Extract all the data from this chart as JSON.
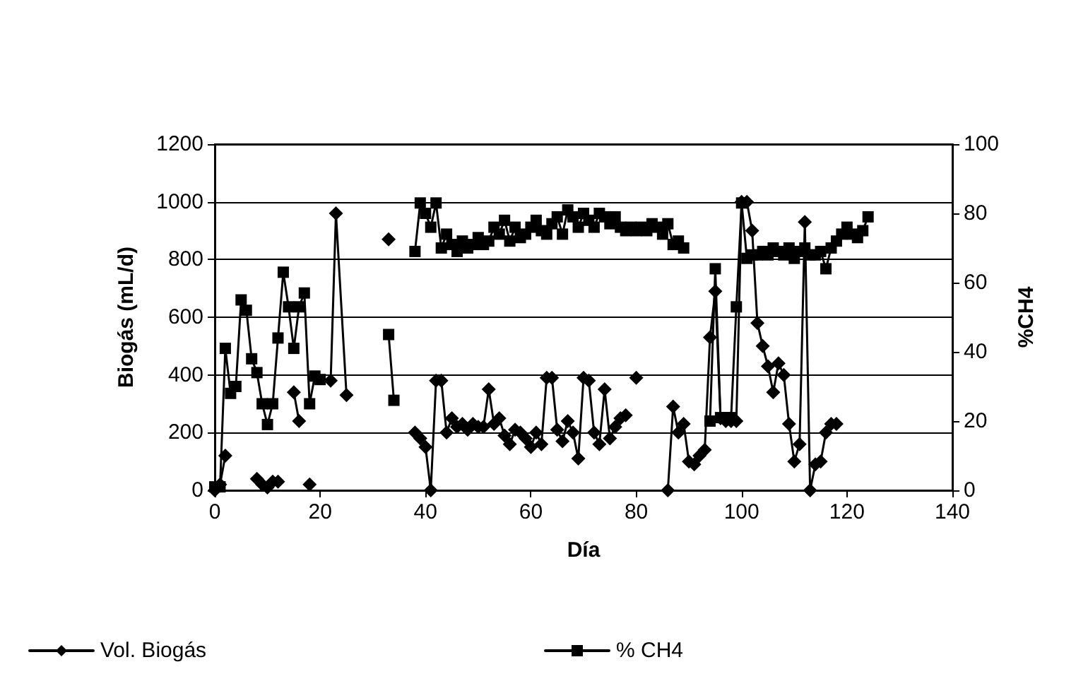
{
  "chart_data": {
    "type": "line",
    "xlabel": "Día",
    "ylabel": "Biogás (mL/d)",
    "y2label": "%CH4",
    "xlim": [
      0,
      140
    ],
    "xticks": [
      0,
      20,
      40,
      60,
      80,
      100,
      120,
      140
    ],
    "ylim": [
      0,
      1200
    ],
    "yticks": [
      0,
      200,
      400,
      600,
      800,
      1000,
      1200
    ],
    "y2lim": [
      0,
      100
    ],
    "y2ticks": [
      0,
      20,
      40,
      60,
      80,
      100
    ],
    "grid": "y",
    "legend": "bottom",
    "line_style": "solid",
    "series": [
      {
        "name": "Vol. Biogás",
        "color": "#000000",
        "marker": "diamond",
        "x": [
          0,
          1,
          2,
          3,
          8,
          9,
          10,
          11,
          12,
          13,
          15,
          16,
          17,
          18,
          19,
          22,
          23,
          25,
          26,
          33,
          34,
          38,
          39,
          40,
          41,
          42,
          43,
          44,
          45,
          46,
          47,
          48,
          49,
          50,
          51,
          52,
          53,
          54,
          55,
          56,
          57,
          58,
          59,
          60,
          61,
          62,
          63,
          64,
          65,
          66,
          67,
          68,
          69,
          70,
          71,
          72,
          73,
          74,
          75,
          76,
          77,
          78,
          79,
          80,
          81,
          86,
          87,
          88,
          89,
          90,
          91,
          92,
          93,
          94,
          95,
          96,
          97,
          98,
          99,
          100,
          101,
          102,
          103,
          104,
          105,
          106,
          107,
          108,
          109,
          110,
          111,
          112,
          113,
          114,
          115,
          116,
          117,
          118
        ],
        "values": [
          0,
          20,
          120,
          null,
          40,
          20,
          10,
          30,
          30,
          null,
          340,
          240,
          null,
          20,
          null,
          380,
          960,
          330,
          null,
          870,
          null,
          200,
          180,
          150,
          0,
          380,
          380,
          200,
          250,
          220,
          230,
          210,
          230,
          220,
          220,
          350,
          230,
          250,
          190,
          160,
          210,
          200,
          180,
          150,
          200,
          160,
          390,
          390,
          210,
          170,
          240,
          200,
          110,
          390,
          380,
          200,
          160,
          350,
          180,
          220,
          250,
          260,
          null,
          390,
          null,
          0,
          290,
          200,
          230,
          100,
          90,
          120,
          140,
          530,
          690,
          250,
          240,
          240,
          240,
          1000,
          1000,
          900,
          580,
          500,
          430,
          340,
          440,
          400,
          230,
          100,
          160,
          930,
          0,
          90,
          100,
          200,
          230,
          230
        ]
      },
      {
        "name": "% CH4",
        "color": "#000000",
        "marker": "square",
        "axis": "y2",
        "x": [
          0,
          1,
          2,
          3,
          4,
          5,
          6,
          7,
          8,
          9,
          10,
          11,
          12,
          13,
          14,
          15,
          16,
          17,
          18,
          19,
          20,
          21,
          33,
          34,
          35,
          38,
          39,
          40,
          41,
          42,
          43,
          44,
          45,
          46,
          47,
          48,
          49,
          50,
          51,
          52,
          53,
          54,
          55,
          56,
          57,
          58,
          59,
          60,
          61,
          62,
          63,
          64,
          65,
          66,
          67,
          68,
          69,
          70,
          71,
          72,
          73,
          74,
          75,
          76,
          77,
          78,
          79,
          80,
          81,
          82,
          83,
          84,
          85,
          86,
          87,
          88,
          89,
          90,
          94,
          95,
          96,
          97,
          98,
          99,
          100,
          101,
          102,
          103,
          104,
          105,
          106,
          107,
          108,
          109,
          110,
          111,
          112,
          113,
          114,
          115,
          116,
          117,
          118,
          119,
          120,
          121,
          122,
          123,
          124
        ],
        "values": [
          1,
          1,
          41,
          28,
          30,
          55,
          52,
          38,
          34,
          25,
          19,
          25,
          44,
          63,
          53,
          41,
          53,
          57,
          25,
          33,
          32,
          null,
          45,
          26,
          null,
          69,
          83,
          80,
          76,
          83,
          70,
          74,
          71,
          69,
          72,
          70,
          71,
          73,
          71,
          72,
          76,
          74,
          78,
          72,
          76,
          73,
          74,
          76,
          78,
          75,
          74,
          77,
          79,
          74,
          81,
          79,
          76,
          80,
          78,
          76,
          80,
          79,
          77,
          79,
          76,
          75,
          76,
          75,
          76,
          75,
          77,
          76,
          74,
          77,
          71,
          72,
          70,
          null,
          20,
          64,
          21,
          21,
          21,
          53,
          83,
          67,
          68,
          68,
          69,
          68,
          70,
          69,
          68,
          70,
          67,
          69,
          70,
          68,
          68,
          69,
          64,
          70,
          72,
          74,
          76,
          74,
          73,
          75,
          79
        ]
      }
    ]
  }
}
